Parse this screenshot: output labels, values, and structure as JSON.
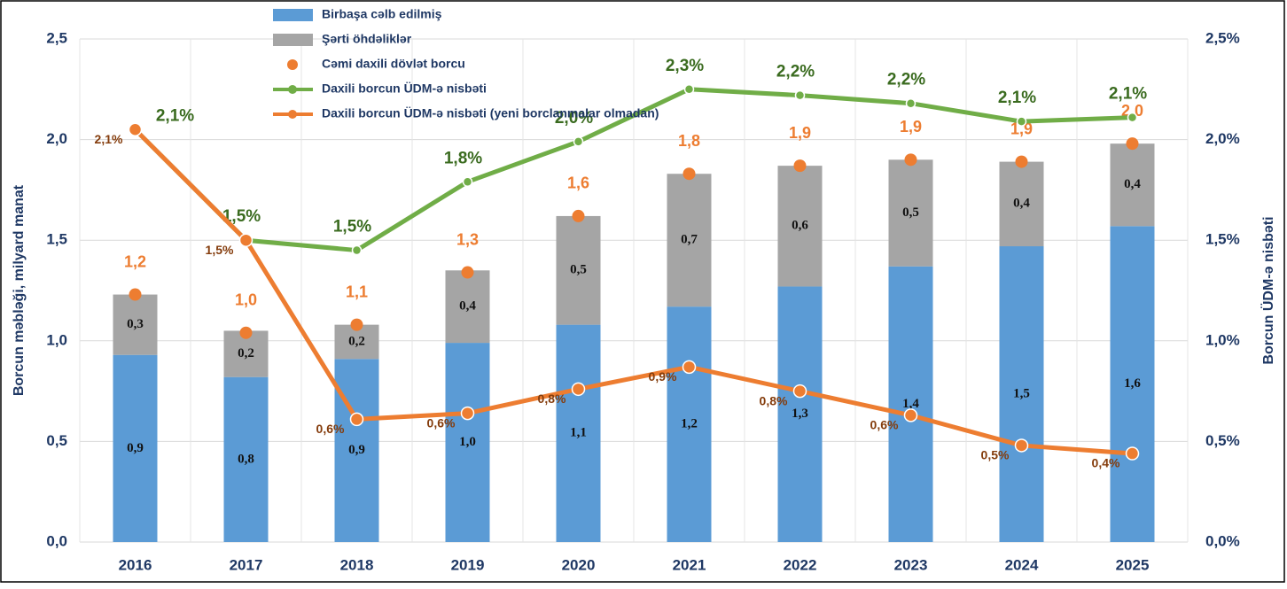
{
  "chart_data": {
    "type": "combo",
    "categories": [
      "2016",
      "2017",
      "2018",
      "2019",
      "2020",
      "2021",
      "2022",
      "2023",
      "2024",
      "2025"
    ],
    "ylabel": "Borcun məbləği, milyard manat",
    "y2label": "Borcun ÜDM-ə nisbəti",
    "ylim": [
      0,
      2.5
    ],
    "yticks": [
      {
        "value": 0,
        "label": "0,0"
      },
      {
        "value": 0.5,
        "label": "0,5"
      },
      {
        "value": 1,
        "label": "1,0"
      },
      {
        "value": 1.5,
        "label": "1,5"
      },
      {
        "value": 2,
        "label": "2,0"
      },
      {
        "value": 2.5,
        "label": "2,5"
      }
    ],
    "y2lim": [
      0,
      2.5
    ],
    "y2ticks": [
      {
        "value": 0,
        "label": "0,0%"
      },
      {
        "value": 0.5,
        "label": "0,5%"
      },
      {
        "value": 1,
        "label": "1,0%"
      },
      {
        "value": 1.5,
        "label": "1,5%"
      },
      {
        "value": 2,
        "label": "2,0%"
      },
      {
        "value": 2.5,
        "label": "2,5%"
      }
    ],
    "grid": true,
    "series": [
      {
        "name": "Birbaşa cəlb edilmiş",
        "type": "bar",
        "color": "#5b9bd5",
        "values": [
          0.93,
          0.82,
          0.91,
          0.99,
          1.08,
          1.17,
          1.27,
          1.37,
          1.47,
          1.57
        ],
        "value_labels": [
          "0,9",
          "0,8",
          "0,9",
          "1,0",
          "1,1",
          "1,2",
          "1,3",
          "1,4",
          "1,5",
          "1,6"
        ]
      },
      {
        "name": "Şərti öhdəliklər",
        "type": "bar",
        "color": "#a5a5a5",
        "values": [
          0.3,
          0.23,
          0.17,
          0.36,
          0.54,
          0.66,
          0.6,
          0.53,
          0.42,
          0.41
        ],
        "value_labels": [
          "0,3",
          "0,2",
          "0,2",
          "0,4",
          "0,5",
          "0,7",
          "0,6",
          "0,5",
          "0,4",
          "0,4"
        ]
      },
      {
        "name": "Cəmi daxili dövlət  borcu",
        "type": "dot",
        "color": "#ed7d31",
        "values": [
          1.23,
          1.04,
          1.08,
          1.34,
          1.62,
          1.83,
          1.87,
          1.9,
          1.89,
          1.98
        ],
        "value_labels": [
          "1,2",
          "1,0",
          "1,1",
          "1,3",
          "1,6",
          "1,8",
          "1,9",
          "1,9",
          "1,9",
          "2,0"
        ]
      },
      {
        "name": "Daxili borcun ÜDM-ə nisbəti",
        "type": "line",
        "axis": "y2",
        "color": "#70ad47",
        "values": [
          2.05,
          1.5,
          1.45,
          1.79,
          1.99,
          2.25,
          2.22,
          2.18,
          2.09,
          2.11
        ],
        "value_labels": [
          "2,1%",
          "1,5%",
          "1,5%",
          "1,8%",
          "2,0%",
          "2,3%",
          "2,2%",
          "2,2%",
          "2,1%",
          "2,1%"
        ]
      },
      {
        "name": "Daxili borcun ÜDM-ə nisbəti (yeni borclanmalar olmadan)",
        "type": "line",
        "axis": "y2",
        "color": "#ed7d31",
        "values": [
          2.05,
          1.5,
          0.61,
          0.64,
          0.76,
          0.87,
          0.75,
          0.63,
          0.48,
          0.44
        ],
        "value_labels": [
          "2,1%",
          "1,5%",
          "0,6%",
          "0,6%",
          "0,8%",
          "0,9%",
          "0,8%",
          "0,6%",
          "0,5%",
          "0,4%"
        ]
      }
    ]
  }
}
